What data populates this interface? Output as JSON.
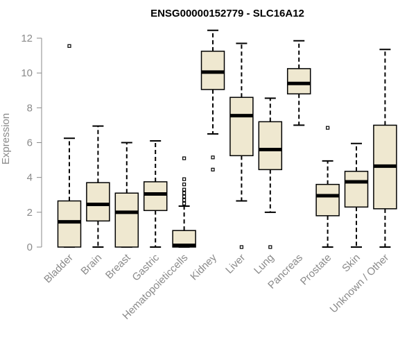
{
  "chart_data": {
    "type": "boxplot",
    "title": "ENSG00000152779 - SLC16A12",
    "xlabel": "",
    "ylabel": "Expression",
    "ylim": [
      0,
      12
    ],
    "yticks": [
      0,
      2,
      4,
      6,
      8,
      10,
      12
    ],
    "box_fill": "#efe8d0",
    "line_color": "#000000",
    "axis_color": "#8a8a8a",
    "categories": [
      "Bladder",
      "Brain",
      "Breast",
      "Gastric",
      "Hematopoieticcells",
      "Kidney",
      "Liver",
      "Lung",
      "Pancreas",
      "Prostate",
      "Skin",
      "Unknown / Other"
    ],
    "boxes": [
      {
        "min": 0,
        "q1": 0,
        "median": 1.45,
        "q3": 2.65,
        "max": 6.25,
        "outliers": [
          11.55
        ]
      },
      {
        "min": 0,
        "q1": 1.5,
        "median": 2.45,
        "q3": 3.7,
        "max": 6.95,
        "outliers": []
      },
      {
        "min": 0,
        "q1": 0,
        "median": 2.0,
        "q3": 3.1,
        "max": 6.0,
        "outliers": []
      },
      {
        "min": 0,
        "q1": 2.1,
        "median": 3.05,
        "q3": 3.75,
        "max": 6.1,
        "outliers": []
      },
      {
        "min": 0,
        "q1": 0,
        "median": 0.1,
        "q3": 0.95,
        "max": 2.35,
        "outliers": [
          2.5,
          2.7,
          2.9,
          3.1,
          3.3,
          3.6,
          3.9,
          5.1
        ]
      },
      {
        "min": 6.5,
        "q1": 9.05,
        "median": 10.05,
        "q3": 11.25,
        "max": 12.45,
        "outliers": [
          5.15,
          4.45
        ]
      },
      {
        "min": 2.65,
        "q1": 5.25,
        "median": 7.55,
        "q3": 8.6,
        "max": 11.7,
        "outliers": [
          0
        ]
      },
      {
        "min": 2.0,
        "q1": 4.45,
        "median": 5.6,
        "q3": 7.2,
        "max": 8.55,
        "outliers": [
          0
        ]
      },
      {
        "min": 7.0,
        "q1": 8.8,
        "median": 9.4,
        "q3": 10.25,
        "max": 11.85,
        "outliers": []
      },
      {
        "min": 0,
        "q1": 1.8,
        "median": 2.95,
        "q3": 3.6,
        "max": 4.95,
        "outliers": [
          6.85
        ]
      },
      {
        "min": 0,
        "q1": 2.3,
        "median": 3.75,
        "q3": 4.35,
        "max": 5.95,
        "outliers": []
      },
      {
        "min": 0,
        "q1": 2.2,
        "median": 4.65,
        "q3": 7.0,
        "max": 11.35,
        "outliers": []
      }
    ]
  }
}
